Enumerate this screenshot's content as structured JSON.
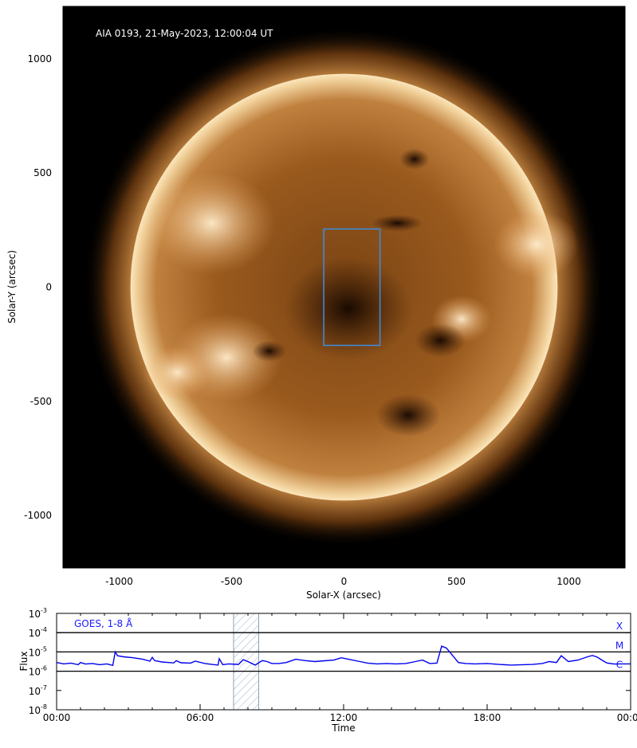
{
  "chart_data": [
    {
      "type": "image",
      "title": "AIA 0193, 21-May-2023, 12:00:04 UT",
      "xlabel": "Solar-X (arcsec)",
      "ylabel": "Solar-Y (arcsec)",
      "xlim": [
        -1250,
        1250
      ],
      "ylim": [
        -1230,
        1230
      ],
      "xticks": [
        -1000,
        -500,
        0,
        500,
        1000
      ],
      "xtick_labels": [
        "-1000",
        "-500",
        "0",
        "500",
        "1000"
      ],
      "yticks": [
        -1000,
        -500,
        0,
        500,
        1000
      ],
      "ytick_labels": [
        "-1000",
        "-500",
        "0",
        "500",
        "1000"
      ],
      "solar_radius_arcsec": 950,
      "box": {
        "x0": -90,
        "x1": 160,
        "y0": -255,
        "y1": 255,
        "color": "#3a8ee6"
      },
      "colors": {
        "disk_bright": "#f3d7a6",
        "disk_mid": "#a86424",
        "disk_dark": "#2a1203",
        "background": "#000000"
      }
    },
    {
      "type": "line",
      "title": "",
      "series_label": "GOES, 1-8 Å",
      "xlabel": "Time",
      "ylabel": "Flux",
      "xlim": [
        0,
        24
      ],
      "ylim_log10": [
        -8,
        -3
      ],
      "xticks": [
        0,
        6,
        12,
        18,
        24
      ],
      "xtick_labels": [
        "00:00",
        "06:00",
        "12:00",
        "18:00",
        "00:00"
      ],
      "yticks_log10": [
        -8,
        -7,
        -6,
        -5,
        -4,
        -3
      ],
      "ytick_base": "10",
      "ytick_exponents": [
        "-8",
        "-7",
        "-6",
        "-5",
        "-4",
        "-3"
      ],
      "flare_levels": [
        {
          "class": "X",
          "log10": -4
        },
        {
          "class": "M",
          "log10": -5
        },
        {
          "class": "C",
          "log10": -6
        }
      ],
      "shaded_interval_hours": [
        7.4,
        8.45
      ],
      "series": [
        {
          "color": "#0000ee",
          "x": [
            0,
            0.3,
            0.6,
            0.9,
            1.0,
            1.2,
            1.5,
            1.8,
            2.1,
            2.35,
            2.45,
            2.55,
            2.8,
            3.2,
            3.6,
            3.9,
            4.0,
            4.1,
            4.4,
            4.9,
            5.0,
            5.2,
            5.6,
            5.8,
            6.2,
            6.5,
            6.75,
            6.8,
            6.95,
            7.2,
            7.6,
            7.8,
            8.0,
            8.3,
            8.6,
            8.8,
            9.0,
            9.3,
            9.6,
            10.0,
            10.4,
            10.8,
            11.2,
            11.6,
            11.9,
            12.2,
            12.6,
            13.0,
            13.4,
            13.8,
            14.2,
            14.6,
            15.0,
            15.3,
            15.6,
            15.9,
            16.1,
            16.3,
            16.5,
            16.8,
            17.1,
            17.5,
            18.0,
            18.5,
            19.0,
            19.5,
            19.9,
            20.3,
            20.6,
            20.9,
            21.1,
            21.4,
            21.8,
            22.2,
            22.4,
            22.6,
            22.8,
            23.0,
            23.3,
            23.6,
            24.0
          ],
          "log10_flux": [
            -5.55,
            -5.62,
            -5.58,
            -5.66,
            -5.55,
            -5.63,
            -5.6,
            -5.66,
            -5.62,
            -5.7,
            -5.0,
            -5.2,
            -5.25,
            -5.3,
            -5.38,
            -5.48,
            -5.28,
            -5.45,
            -5.52,
            -5.57,
            -5.45,
            -5.56,
            -5.58,
            -5.48,
            -5.6,
            -5.65,
            -5.68,
            -5.35,
            -5.66,
            -5.62,
            -5.65,
            -5.4,
            -5.5,
            -5.68,
            -5.45,
            -5.5,
            -5.6,
            -5.6,
            -5.55,
            -5.38,
            -5.45,
            -5.5,
            -5.46,
            -5.42,
            -5.3,
            -5.38,
            -5.48,
            -5.58,
            -5.62,
            -5.6,
            -5.62,
            -5.6,
            -5.5,
            -5.42,
            -5.6,
            -5.58,
            -4.7,
            -4.8,
            -5.1,
            -5.55,
            -5.6,
            -5.62,
            -5.6,
            -5.65,
            -5.68,
            -5.66,
            -5.65,
            -5.6,
            -5.5,
            -5.55,
            -5.2,
            -5.5,
            -5.42,
            -5.25,
            -5.18,
            -5.27,
            -5.42,
            -5.57,
            -5.63,
            -5.62,
            -5.62
          ]
        }
      ]
    }
  ]
}
